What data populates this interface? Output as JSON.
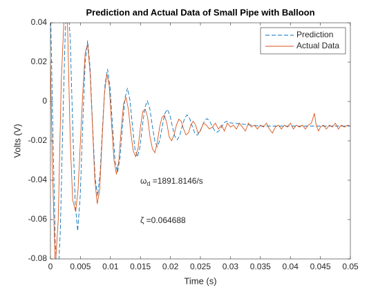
{
  "chart_data": {
    "type": "line",
    "title": "Prediction and Actual Data of Small Pipe with Balloon",
    "xlabel": "Time (s)",
    "ylabel": "Volts (V)",
    "xlim": [
      0,
      0.05
    ],
    "ylim": [
      -0.08,
      0.04
    ],
    "xticks": [
      0,
      0.005,
      0.01,
      0.015,
      0.02,
      0.025,
      0.03,
      0.035,
      0.04,
      0.045,
      0.05
    ],
    "yticks": [
      -0.08,
      -0.06,
      -0.04,
      -0.02,
      0,
      0.02,
      0.04
    ],
    "legend": "northeast",
    "grid": false,
    "annotations": [
      {
        "symbol": "ω",
        "subscript": "d",
        "text": " =1891.8146/s"
      },
      {
        "symbol": "ζ",
        "text": " =0.064688"
      }
    ],
    "series": [
      {
        "name": "Prediction",
        "color": "#0072bd",
        "dash": true,
        "x": [
          0,
          0.00039,
          0.00081,
          0.00122,
          0.00164,
          0.00205,
          0.00247,
          0.00288,
          0.0033,
          0.00371,
          0.00413,
          0.00454,
          0.00496,
          0.00537,
          0.00579,
          0.0062,
          0.00662,
          0.00703,
          0.00745,
          0.00786,
          0.00828,
          0.00869,
          0.00911,
          0.00952,
          0.00994,
          0.01035,
          0.01077,
          0.01118,
          0.0116,
          0.01201,
          0.01243,
          0.01284,
          0.01326,
          0.01367,
          0.01409,
          0.0145,
          0.01492,
          0.01533,
          0.01575,
          0.01616,
          0.01658,
          0.01699,
          0.01741,
          0.01782,
          0.01824,
          0.01865,
          0.01907,
          0.01948,
          0.0199,
          0.02031,
          0.02073,
          0.02114,
          0.02156,
          0.02197,
          0.02239,
          0.0228,
          0.02322,
          0.02363,
          0.02405,
          0.02446,
          0.02488,
          0.02529,
          0.02571,
          0.02612,
          0.02654,
          0.02695,
          0.02737,
          0.02778,
          0.0282,
          0.02861,
          0.02903,
          0.02944,
          0.02986,
          0.035,
          0.04,
          0.045,
          0.05
        ],
        "values": [
          0.05,
          -0.0125,
          -0.0721,
          -0.0926,
          -0.0663,
          -0.0125,
          0.0361,
          0.0528,
          0.0314,
          -0.0125,
          -0.0522,
          -0.0658,
          -0.0483,
          -0.0125,
          0.0199,
          0.031,
          0.0167,
          -0.0125,
          -0.0389,
          -0.048,
          -0.0363,
          -0.0125,
          0.009,
          0.0165,
          0.007,
          -0.0125,
          -0.0301,
          -0.0361,
          -0.0284,
          -0.0125,
          0.0018,
          0.0068,
          0.0005,
          -0.0125,
          -0.0242,
          -0.0282,
          -0.0231,
          -0.0125,
          -0.003,
          0.0003,
          -0.0039,
          -0.0125,
          -0.0203,
          -0.023,
          -0.0195,
          -0.0125,
          -0.0061,
          -0.004,
          -0.0068,
          -0.0125,
          -0.0177,
          -0.0195,
          -0.0172,
          -0.0125,
          -0.0083,
          -0.0068,
          -0.0087,
          -0.0125,
          -0.016,
          -0.0171,
          -0.0156,
          -0.0125,
          -0.0097,
          -0.0087,
          -0.01,
          -0.0125,
          -0.0148,
          -0.0156,
          -0.0146,
          -0.0125,
          -0.0106,
          -0.01,
          -0.0108,
          -0.0125,
          -0.0125,
          -0.0125,
          -0.0125
        ]
      },
      {
        "name": "Actual Data",
        "color": "#d95319",
        "dash": false,
        "x": [
          0,
          0.0003,
          0.0008,
          0.0013,
          0.0018,
          0.0023,
          0.0028,
          0.0033,
          0.0037,
          0.0042,
          0.0046,
          0.005,
          0.0054,
          0.0058,
          0.0062,
          0.0066,
          0.007,
          0.0074,
          0.0078,
          0.0082,
          0.0086,
          0.009,
          0.0094,
          0.0098,
          0.0102,
          0.0106,
          0.011,
          0.0114,
          0.0118,
          0.0122,
          0.0126,
          0.013,
          0.0134,
          0.0138,
          0.0142,
          0.0146,
          0.015,
          0.0154,
          0.0158,
          0.0162,
          0.0166,
          0.017,
          0.0174,
          0.0178,
          0.0182,
          0.0186,
          0.019,
          0.0194,
          0.0198,
          0.0202,
          0.0206,
          0.021,
          0.0214,
          0.0218,
          0.0222,
          0.0226,
          0.023,
          0.0234,
          0.0238,
          0.0242,
          0.0246,
          0.025,
          0.0255,
          0.026,
          0.0265,
          0.027,
          0.0275,
          0.028,
          0.0285,
          0.029,
          0.0295,
          0.03,
          0.0305,
          0.031,
          0.0315,
          0.032,
          0.0325,
          0.033,
          0.0335,
          0.034,
          0.0345,
          0.035,
          0.0355,
          0.036,
          0.0365,
          0.037,
          0.0375,
          0.038,
          0.0385,
          0.039,
          0.0395,
          0.04,
          0.0405,
          0.041,
          0.0415,
          0.042,
          0.0425,
          0.043,
          0.0435,
          0.044,
          0.0443,
          0.0447,
          0.045,
          0.0455,
          0.046,
          0.0465,
          0.047,
          0.0475,
          0.048,
          0.0485,
          0.049,
          0.0495,
          0.05
        ],
        "values": [
          0.02,
          -0.03,
          -0.085,
          -0.06,
          0.01,
          0.045,
          0.045,
          -0.02,
          -0.05,
          -0.056,
          -0.045,
          -0.02,
          0.005,
          0.025,
          0.029,
          0.015,
          -0.012,
          -0.04,
          -0.052,
          -0.045,
          -0.02,
          0.004,
          0.014,
          0.008,
          -0.012,
          -0.03,
          -0.037,
          -0.03,
          -0.014,
          -0.001,
          0.002,
          -0.004,
          -0.016,
          -0.025,
          -0.028,
          -0.024,
          -0.013,
          -0.005,
          -0.004,
          -0.008,
          -0.018,
          -0.024,
          -0.026,
          -0.021,
          -0.013,
          -0.008,
          -0.007,
          -0.011,
          -0.018,
          -0.02,
          -0.017,
          -0.012,
          -0.009,
          -0.01,
          -0.014,
          -0.017,
          -0.016,
          -0.012,
          -0.01,
          -0.012,
          -0.016,
          -0.015,
          -0.011,
          -0.012,
          -0.014,
          -0.013,
          -0.011,
          -0.014,
          -0.012,
          -0.015,
          -0.011,
          -0.013,
          -0.012,
          -0.014,
          -0.011,
          -0.013,
          -0.015,
          -0.011,
          -0.013,
          -0.012,
          -0.014,
          -0.012,
          -0.013,
          -0.011,
          -0.014,
          -0.016,
          -0.013,
          -0.012,
          -0.014,
          -0.012,
          -0.013,
          -0.011,
          -0.014,
          -0.012,
          -0.013,
          -0.012,
          -0.014,
          -0.012,
          -0.011,
          -0.006,
          -0.012,
          -0.015,
          -0.013,
          -0.012,
          -0.014,
          -0.012,
          -0.013,
          -0.011,
          -0.014,
          -0.012,
          -0.013,
          -0.012,
          -0.0125
        ]
      }
    ]
  }
}
